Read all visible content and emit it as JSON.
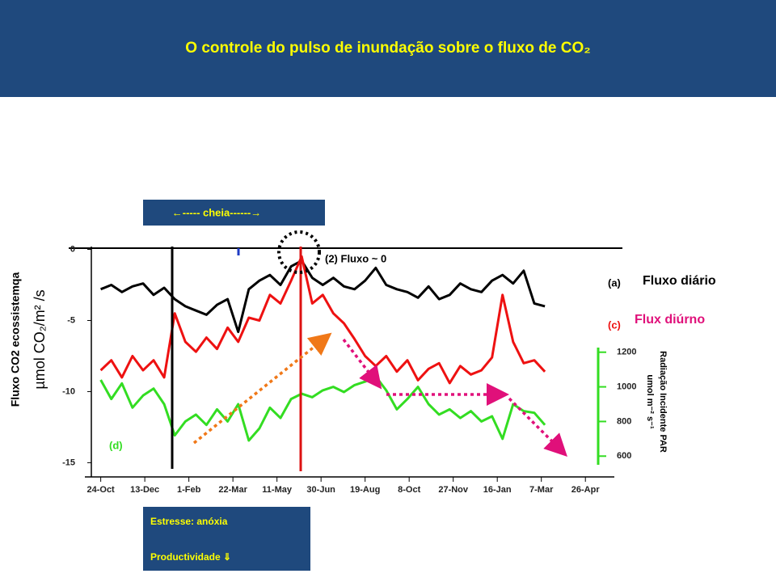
{
  "chart_data": {
    "type": "line",
    "title": "O controle do pulso de inundação sobre o fluxo de CO₂",
    "y_label": "Fluxo CO2 ecossistemqa",
    "y_unit": "µmol CO₂/m² /s",
    "y2_label": "Radiação Incidente PAR",
    "y2_unit": "umol m⁻² s⁻¹",
    "annotations": {
      "flood": "←----- cheia------→",
      "zero_flux": "(2) Fluxo  ~ 0",
      "stress": "Estresse: anóxia",
      "productivity": "Productividade ⇓",
      "daily": "Fluxo diário",
      "diurnal": "Flux diúrno"
    },
    "x": [
      0,
      12,
      24,
      36,
      48,
      60,
      72,
      84,
      96,
      108,
      120,
      132,
      144,
      156,
      168,
      180,
      192,
      204,
      216,
      228,
      240,
      252,
      264,
      276,
      288,
      300,
      312,
      324,
      336,
      348,
      360,
      372,
      384,
      396,
      408,
      420,
      432,
      444,
      456,
      468,
      480,
      492,
      504
    ],
    "xlim": [
      -18,
      592
    ],
    "xticks": [
      {
        "value": 0,
        "label": "24-Oct"
      },
      {
        "value": 50,
        "label": "13-Dec"
      },
      {
        "value": 100,
        "label": "1-Feb"
      },
      {
        "value": 150,
        "label": "22-Mar"
      },
      {
        "value": 200,
        "label": "11-May"
      },
      {
        "value": 250,
        "label": "30-Jun"
      },
      {
        "value": 300,
        "label": "19-Aug"
      },
      {
        "value": 350,
        "label": "8-Oct"
      },
      {
        "value": 400,
        "label": "27-Nov"
      },
      {
        "value": 450,
        "label": "16-Jan"
      },
      {
        "value": 500,
        "label": "7-Mar"
      },
      {
        "value": 550,
        "label": "26-Apr"
      }
    ],
    "ylim": [
      -16,
      0.2
    ],
    "yticks": [
      0,
      -5,
      -10,
      -15
    ],
    "y2lim": [
      480,
      1810
    ],
    "y2ticks": [
      600,
      800,
      1000,
      1200
    ],
    "series": [
      {
        "name": "(a)",
        "color": "#000000",
        "values": [
          -2.8,
          -2.5,
          -3,
          -2.6,
          -2.4,
          -3.2,
          -2.7,
          -3.5,
          -4,
          -4.3,
          -4.6,
          -3.9,
          -3.5,
          -5.8,
          -2.8,
          -2.2,
          -1.8,
          -2.5,
          -1.2,
          -0.8,
          -2,
          -2.5,
          -2,
          -2.6,
          -2.8,
          -2.2,
          -1.3,
          -2.5,
          -2.8,
          -3,
          -3.4,
          -2.6,
          -3.5,
          -3.2,
          -2.4,
          -2.8,
          -3,
          -2.2,
          -1.8,
          -2.4,
          -1.5,
          -3.8,
          -4
        ]
      },
      {
        "name": "(c)",
        "color": "#ee1111",
        "values": [
          -8.5,
          -7.8,
          -9,
          -7.5,
          -8.5,
          -7.8,
          -9,
          -4.5,
          -6.5,
          -7.2,
          -6.2,
          -7,
          -5.5,
          -6.5,
          -4.8,
          -5,
          -3.2,
          -3.8,
          -2.2,
          -0.5,
          -3.8,
          -3.2,
          -4.5,
          -5.2,
          -6.3,
          -7.5,
          -8.2,
          -7.5,
          -8.6,
          -7.8,
          -9.2,
          -8.4,
          -8,
          -9.4,
          -8.2,
          -8.8,
          -8.5,
          -7.6,
          -3.2,
          -6.5,
          -8,
          -7.8,
          -8.6
        ]
      },
      {
        "name": "(d)",
        "color": "#33dd22",
        "axis": "y2",
        "values": [
          1040,
          930,
          1020,
          880,
          950,
          990,
          900,
          720,
          800,
          840,
          780,
          870,
          800,
          900,
          690,
          760,
          880,
          820,
          930,
          960,
          940,
          980,
          1000,
          970,
          1010,
          1030,
          1060,
          980,
          870,
          930,
          1000,
          900,
          840,
          870,
          820,
          860,
          800,
          830,
          700,
          900,
          860,
          850,
          780
        ]
      }
    ]
  }
}
